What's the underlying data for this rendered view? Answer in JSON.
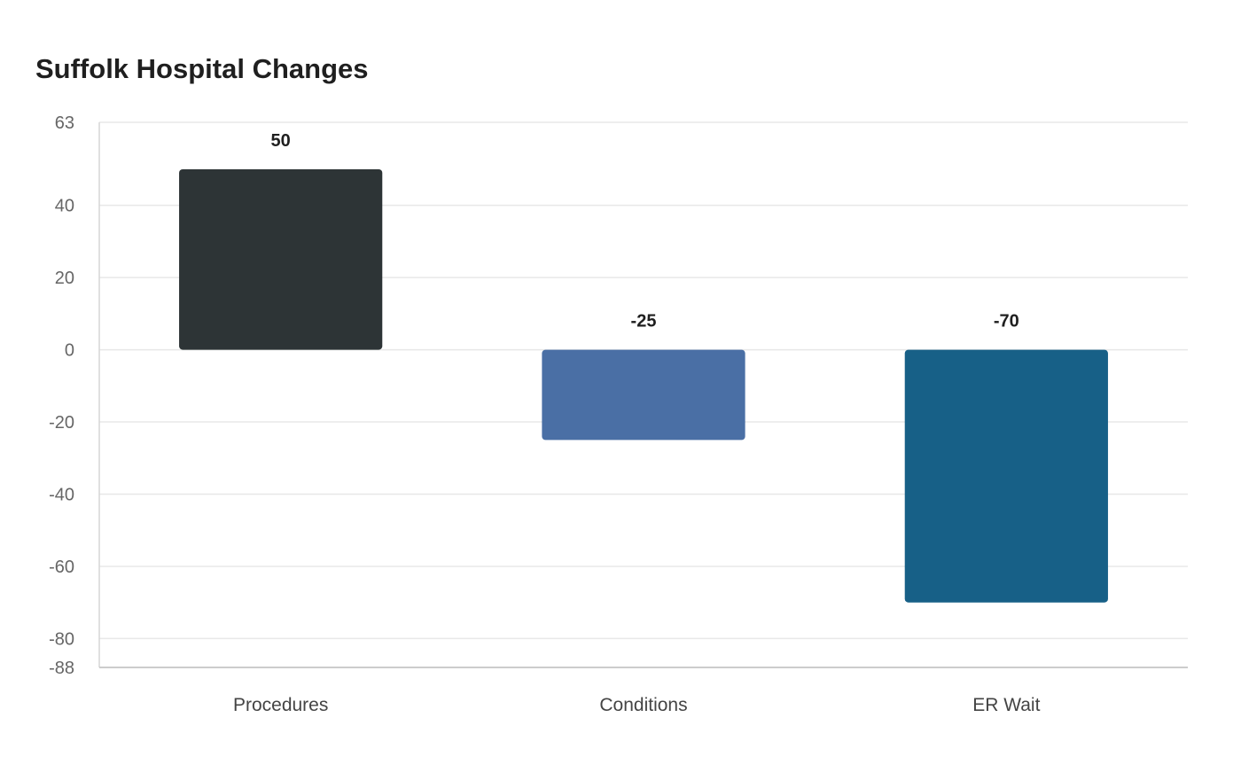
{
  "chart_data": {
    "type": "bar",
    "title": "Suffolk Hospital Changes",
    "xlabel": "",
    "ylabel": "",
    "categories": [
      "Procedures",
      "Conditions",
      "ER Wait"
    ],
    "values": [
      50,
      -25,
      -70
    ],
    "value_labels": [
      "50",
      "-25",
      "-70"
    ],
    "colors": [
      "#2d3436",
      "#4a6fa5",
      "#176087"
    ],
    "ylim": [
      -88,
      63
    ],
    "yticks": [
      63,
      40,
      20,
      0,
      -20,
      -40,
      -60,
      -80,
      -88
    ],
    "grid": true,
    "legend": "none"
  }
}
